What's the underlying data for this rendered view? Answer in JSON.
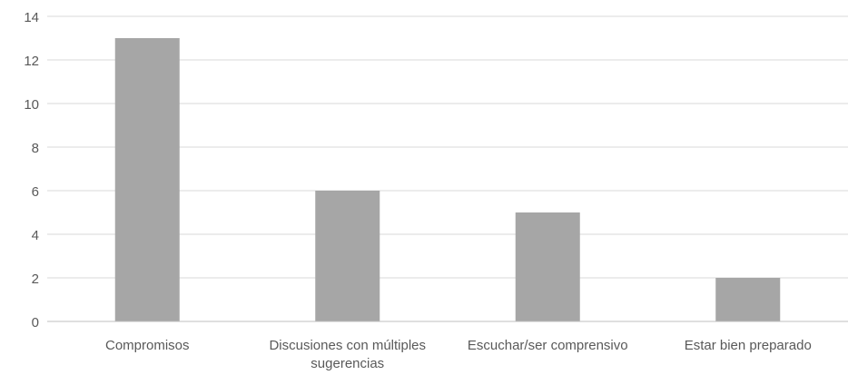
{
  "chart_data": {
    "type": "bar",
    "title": "",
    "xlabel": "",
    "ylabel": "",
    "categories": [
      [
        "Compromisos"
      ],
      [
        "Discusiones con múltiples",
        "sugerencias"
      ],
      [
        "Escuchar/ser comprensivo"
      ],
      [
        "Estar bien preparado"
      ]
    ],
    "values": [
      13,
      6,
      5,
      2
    ],
    "ylim": [
      0,
      14
    ],
    "yticks": [
      "0",
      "2",
      "4",
      "6",
      "8",
      "10",
      "12",
      "14"
    ],
    "grid": true,
    "legend": "none",
    "colors": {
      "bar": "#a6a6a6",
      "grid": "#d9d9d9",
      "axis": "#bfbfbf",
      "text": "#595959"
    }
  }
}
